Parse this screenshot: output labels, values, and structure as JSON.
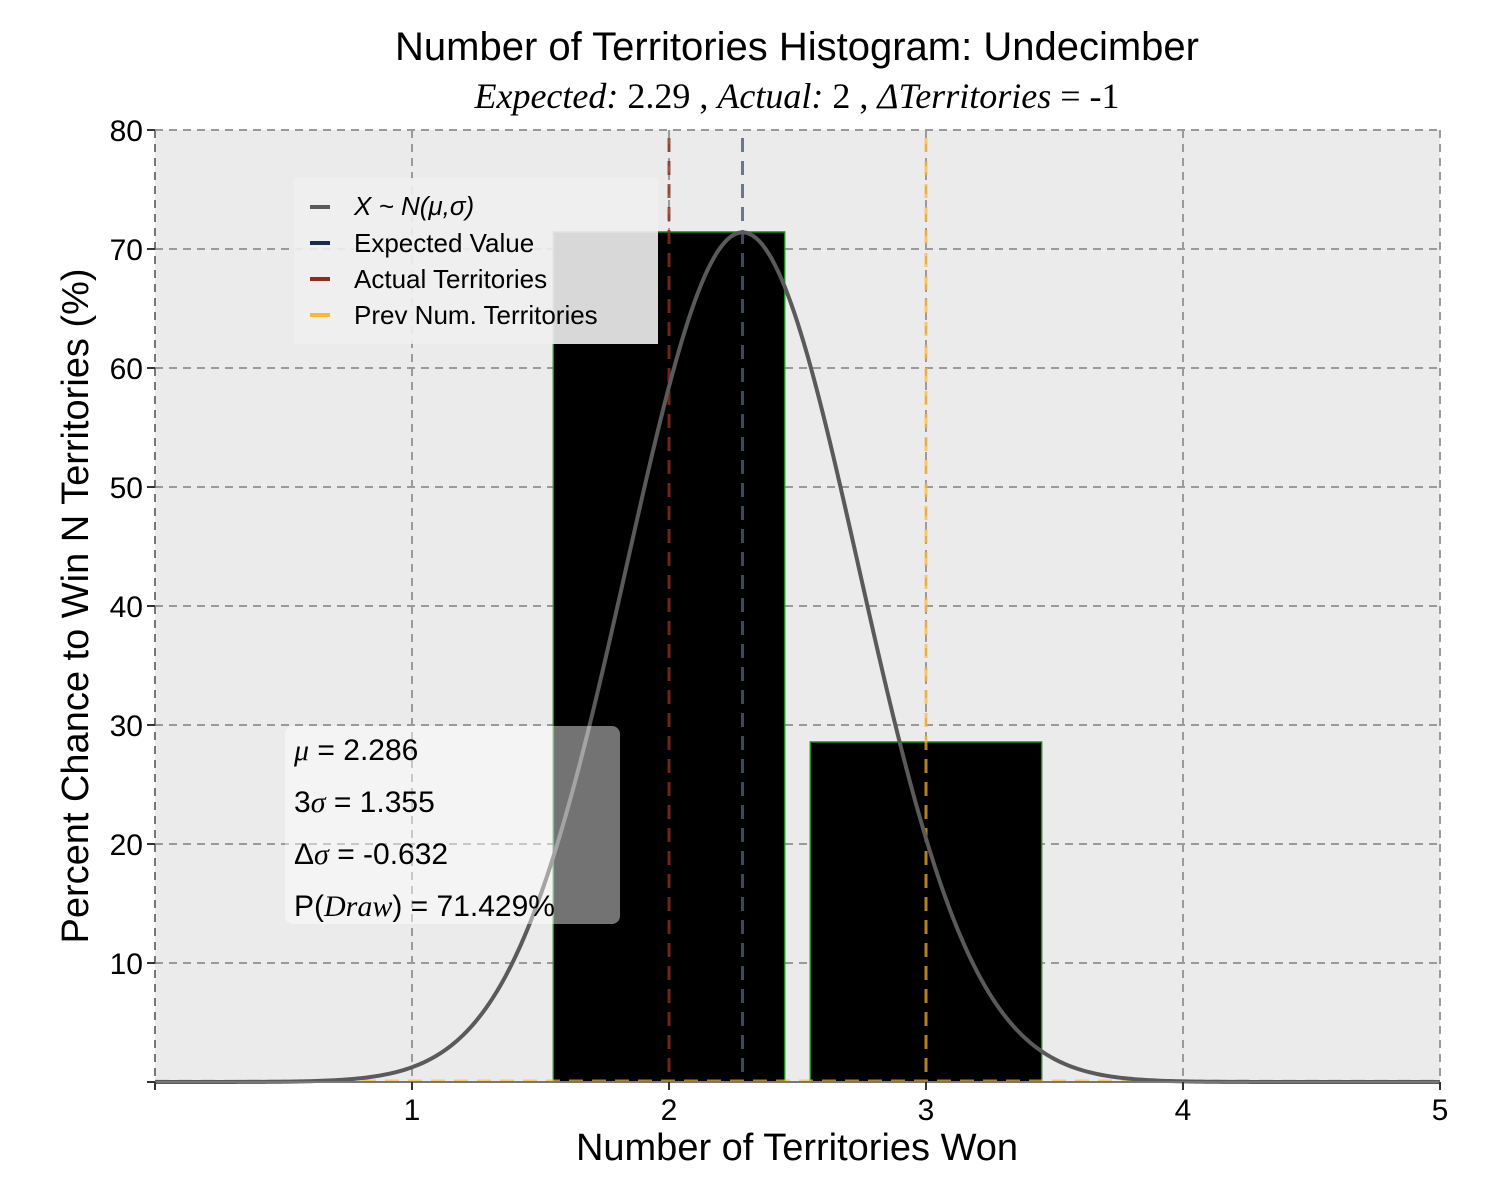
{
  "chart_data": {
    "type": "bar",
    "title": "Number of Territories Histogram: Undecimber",
    "subtitle": {
      "expected_label": "Expected:",
      "expected_value": "2.29",
      "actual_label": "Actual:",
      "actual_value": "2",
      "delta_label": "ΔTerritories",
      "delta_value": "= -1"
    },
    "xlabel": "Number of Territories Won",
    "ylabel": "Percent Chance to Win N Territories (%)",
    "xlim": [
      0,
      5
    ],
    "ylim": [
      0,
      80
    ],
    "x_ticks": [
      "1",
      "2",
      "3",
      "4",
      "5"
    ],
    "x_tick_values": [
      1,
      2,
      3,
      4,
      5
    ],
    "y_ticks": [
      "10",
      "20",
      "30",
      "40",
      "50",
      "60",
      "70",
      "80"
    ],
    "y_tick_values": [
      10,
      20,
      30,
      40,
      50,
      60,
      70,
      80
    ],
    "grid": true,
    "bars": [
      {
        "x": 2,
        "value": 71.43
      },
      {
        "x": 3,
        "value": 28.57
      }
    ],
    "bar_width": 0.9,
    "normal_curve": {
      "mu": 2.286,
      "sigma": 0.4517,
      "peak": 71.4
    },
    "vlines": {
      "expected": 2.286,
      "actual": 2,
      "previous": 3
    },
    "legend": {
      "placement": "top-left",
      "entries": [
        {
          "key": "normal",
          "label": "X ~ N(μ,σ)",
          "color": "#5a5a5a"
        },
        {
          "key": "expected",
          "label": "Expected Value",
          "color": "#1a2a4a"
        },
        {
          "key": "actual",
          "label": "Actual Territories",
          "color": "#8b2e1e"
        },
        {
          "key": "previous",
          "label": "Prev Num. Territories",
          "color": "#ffb733"
        }
      ]
    },
    "stats": {
      "mu_label": "μ",
      "mu_value": "= 2.286",
      "sigma_prefix": "3",
      "sigma_symbol": "σ",
      "sigma_value": "= 1.355",
      "delta_prefix": "Δ",
      "delta_symbol": "σ",
      "delta_value": "= -0.632",
      "p_prefix": "P(",
      "p_symbol": "Draw",
      "p_suffix": ") = 71.429%"
    },
    "colors": {
      "background": "#ebebeb",
      "bar_fill": "#000000",
      "bar_edge": "#1f8a1f",
      "grid": "#9a9a9a",
      "curve": "#5a5a5a"
    }
  }
}
